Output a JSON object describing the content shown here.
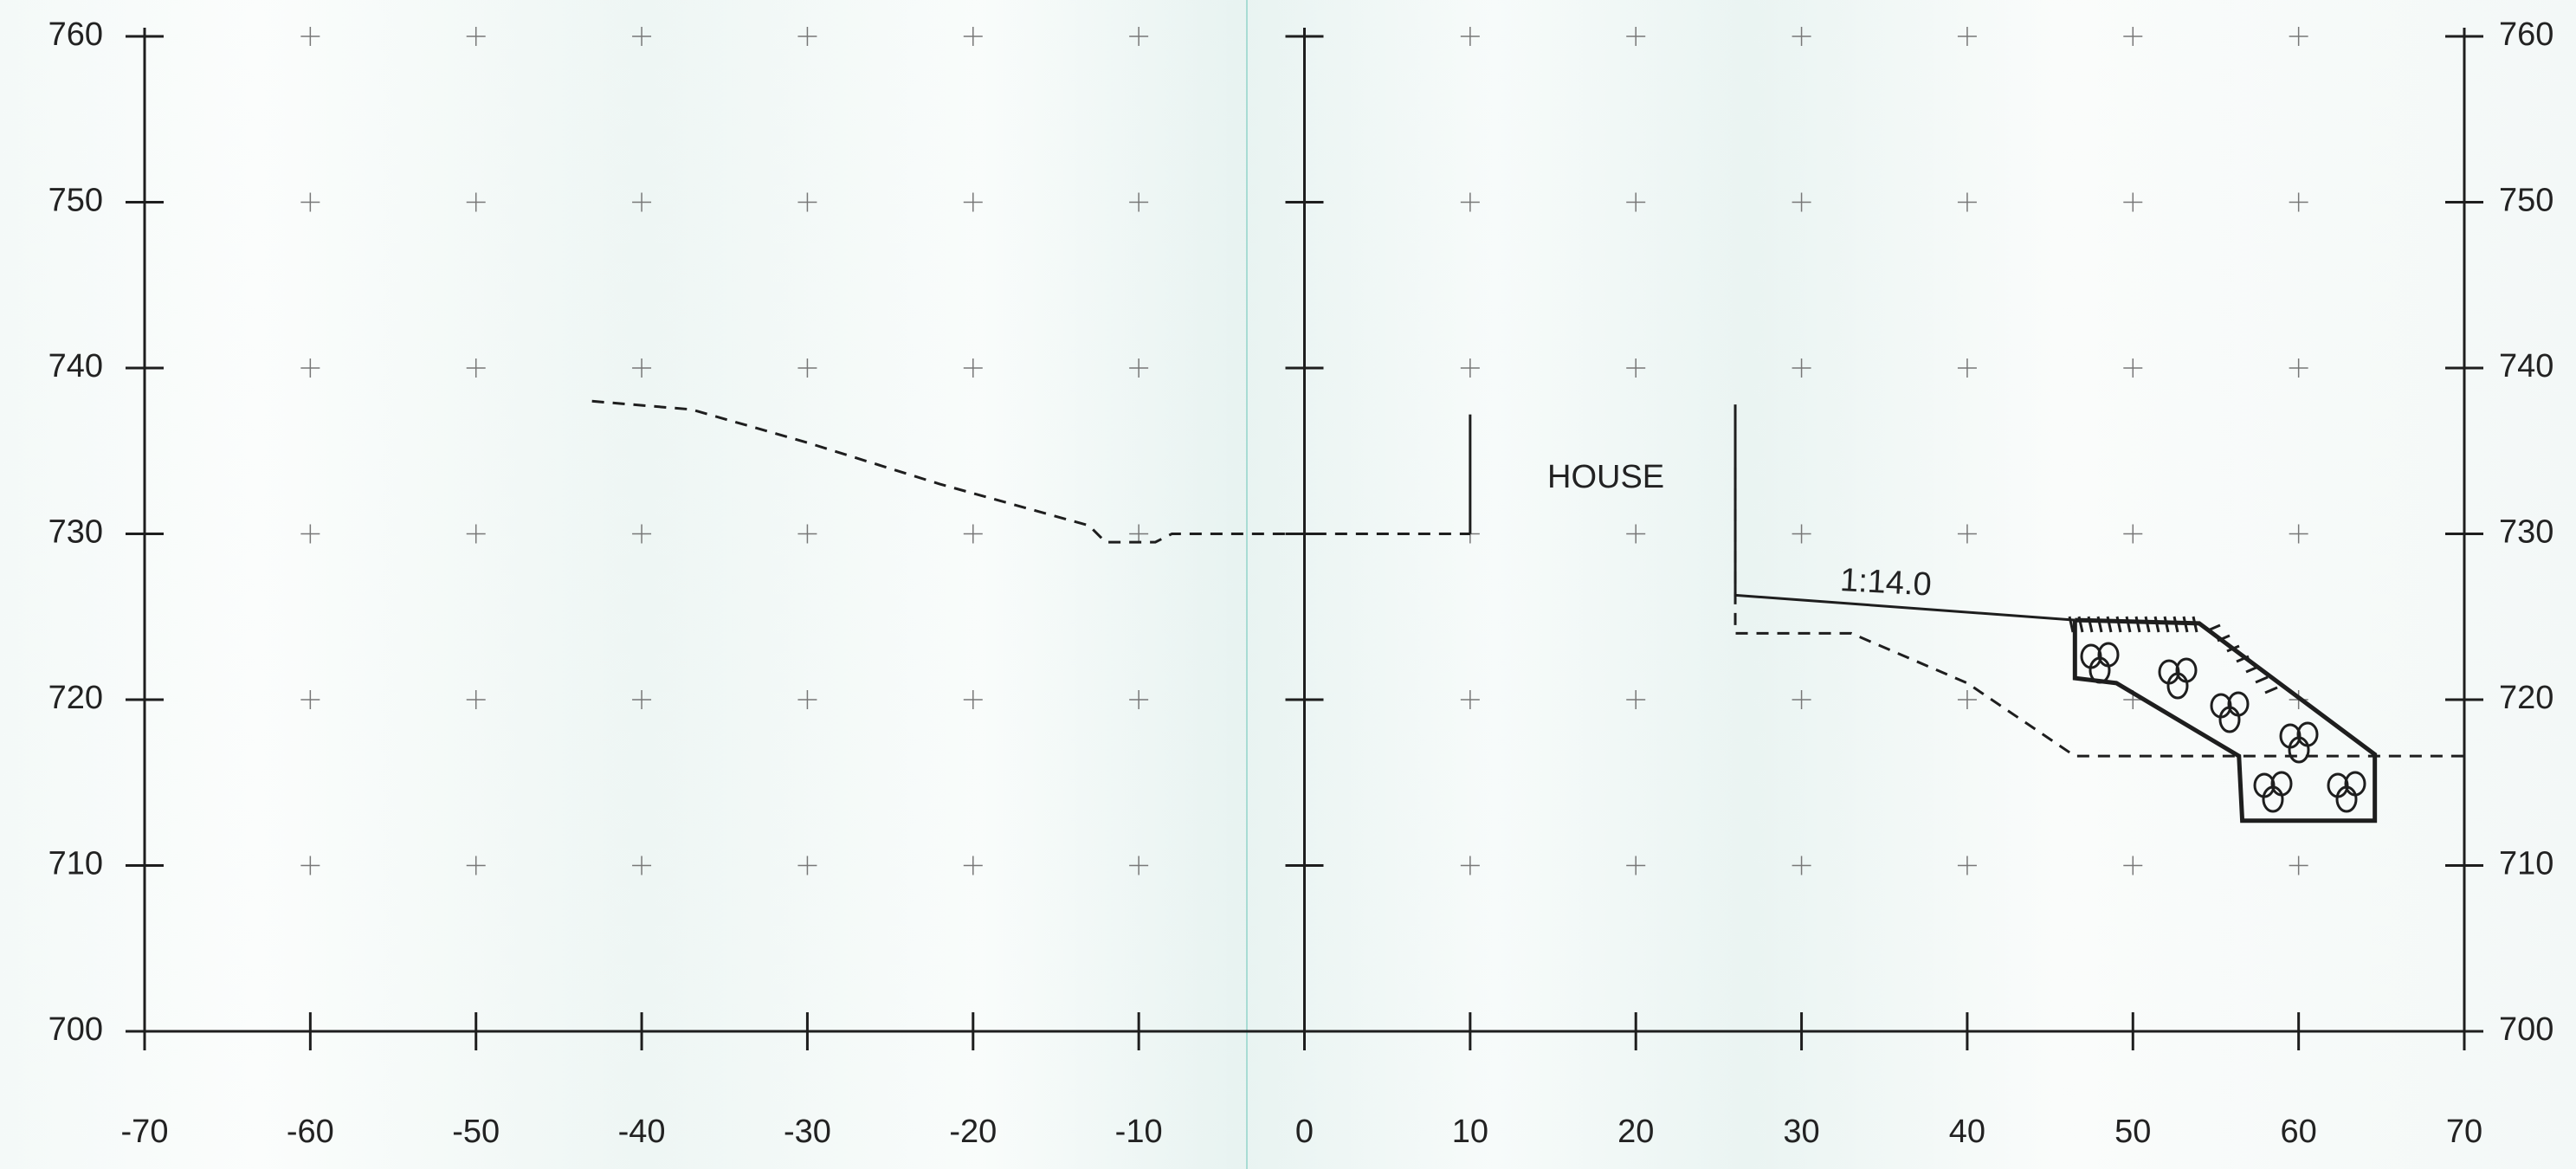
{
  "chart_data": {
    "type": "line",
    "xlim": [
      -70,
      70
    ],
    "ylim": [
      700,
      760
    ],
    "xticks": [
      -70,
      -60,
      -50,
      -40,
      -30,
      -20,
      -10,
      0,
      10,
      20,
      30,
      40,
      50,
      60,
      70
    ],
    "yticks": [
      700,
      710,
      720,
      730,
      740,
      750,
      760
    ],
    "color": "#1e1e1e",
    "series": [
      {
        "style": "dashed",
        "x": [
          -43,
          -37,
          -30,
          -22,
          -13,
          -12,
          -9,
          -8,
          10,
          18,
          26,
          26,
          33,
          40,
          46.5,
          70
        ],
        "values": [
          738,
          737.5,
          735.5,
          733,
          730.5,
          729.5,
          729.5,
          730,
          730,
          null,
          734,
          724,
          724,
          721,
          716.6,
          716.6
        ]
      },
      {
        "style": "solid",
        "x": [
          10,
          10,
          18,
          26,
          26,
          46.5
        ],
        "values": [
          737.2,
          730,
          null,
          737.8,
          726.3,
          724.8
        ]
      },
      {
        "style": "thick",
        "x": [
          46.5,
          46.5,
          49,
          56.4,
          56.6,
          64.6,
          64.6,
          54,
          46.5
        ],
        "values": [
          724.8,
          721.3,
          721,
          716.6,
          712.7,
          712.7,
          716.7,
          724.6,
          724.8
        ]
      }
    ],
    "annotations": [
      "HOUSE",
      "1:14.0"
    ]
  }
}
